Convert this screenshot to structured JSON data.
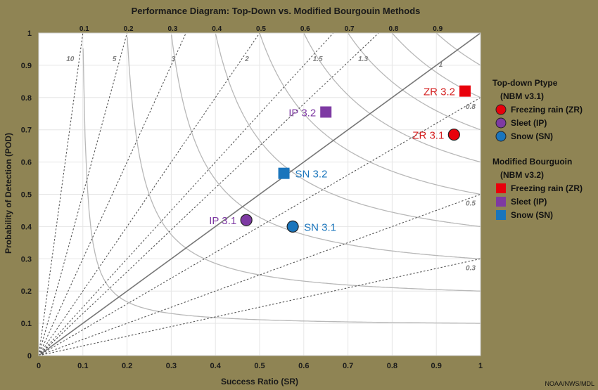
{
  "chart_data": {
    "type": "scatter",
    "title": "Performance Diagram: Top-Down vs. Modified Bourgouin Methods",
    "xlabel": "Success Ratio (SR)",
    "ylabel": "Probability of Detection (POD)",
    "xlim": [
      0,
      1
    ],
    "ylim": [
      0,
      1
    ],
    "grid": true,
    "x_ticks": [
      "0",
      "0.1",
      "0.2",
      "0.3",
      "0.4",
      "0.5",
      "0.6",
      "0.7",
      "0.8",
      "0.9",
      "1"
    ],
    "y_ticks": [
      "0",
      "0.1",
      "0.2",
      "0.3",
      "0.4",
      "0.5",
      "0.6",
      "0.7",
      "0.8",
      "0.9",
      "1"
    ],
    "bias_lines": [
      {
        "value": 10,
        "label": "10"
      },
      {
        "value": 5,
        "label": "5"
      },
      {
        "value": 3,
        "label": "3"
      },
      {
        "value": 2,
        "label": "2"
      },
      {
        "value": 1.5,
        "label": "1.5"
      },
      {
        "value": 1.3,
        "label": "1.3"
      },
      {
        "value": 1,
        "label": "1"
      },
      {
        "value": 0.8,
        "label": "0.8"
      },
      {
        "value": 0.5,
        "label": "0.5"
      },
      {
        "value": 0.3,
        "label": "0.3"
      }
    ],
    "csi_contours": [
      {
        "value": 0.1,
        "label": "0.1"
      },
      {
        "value": 0.2,
        "label": "0.2"
      },
      {
        "value": 0.3,
        "label": "0.3"
      },
      {
        "value": 0.4,
        "label": "0.4"
      },
      {
        "value": 0.5,
        "label": "0.5"
      },
      {
        "value": 0.6,
        "label": "0.6"
      },
      {
        "value": 0.7,
        "label": "0.7"
      },
      {
        "value": 0.8,
        "label": "0.8"
      },
      {
        "value": 0.9,
        "label": "0.9"
      }
    ],
    "points": [
      {
        "label": "ZR 3.1",
        "x": 0.94,
        "y": 0.685,
        "marker": "circle",
        "color": "#e8000b",
        "label_color": "#d42020",
        "label_side": "left"
      },
      {
        "label": "IP 3.1",
        "x": 0.47,
        "y": 0.42,
        "marker": "circle",
        "color": "#7e3aa3",
        "label_color": "#7e3aa3",
        "label_side": "left"
      },
      {
        "label": "SN 3.1",
        "x": 0.575,
        "y": 0.4,
        "marker": "circle",
        "color": "#1a75bc",
        "label_color": "#1a75bc",
        "label_side": "right"
      },
      {
        "label": "ZR 3.2",
        "x": 0.965,
        "y": 0.82,
        "marker": "square",
        "color": "#e8000b",
        "label_color": "#d42020",
        "label_side": "left"
      },
      {
        "label": "IP 3.2",
        "x": 0.65,
        "y": 0.755,
        "marker": "square",
        "color": "#7e3aa3",
        "label_color": "#7e3aa3",
        "label_side": "left"
      },
      {
        "label": "SN 3.2",
        "x": 0.555,
        "y": 0.565,
        "marker": "square",
        "color": "#1a75bc",
        "label_color": "#1a75bc",
        "label_side": "right"
      }
    ],
    "legend": {
      "position": "right",
      "groups": [
        {
          "title": "Top-down Ptype",
          "subtitle": "(NBM v3.1)",
          "marker": "circle",
          "items": [
            {
              "name": "Freezing rain (ZR)",
              "color": "#e8000b"
            },
            {
              "name": "Sleet (IP)",
              "color": "#7e3aa3"
            },
            {
              "name": "Snow (SN)",
              "color": "#1a75bc"
            }
          ]
        },
        {
          "title": "Modified Bourguoin",
          "subtitle": "(NBM v3.2)",
          "marker": "square",
          "items": [
            {
              "name": "Freezing rain (ZR)",
              "color": "#e8000b"
            },
            {
              "name": "Sleet (IP)",
              "color": "#7e3aa3"
            },
            {
              "name": "Snow (SN)",
              "color": "#1a75bc"
            }
          ]
        }
      ]
    }
  },
  "credit": "NOAA/NWS/MDL"
}
